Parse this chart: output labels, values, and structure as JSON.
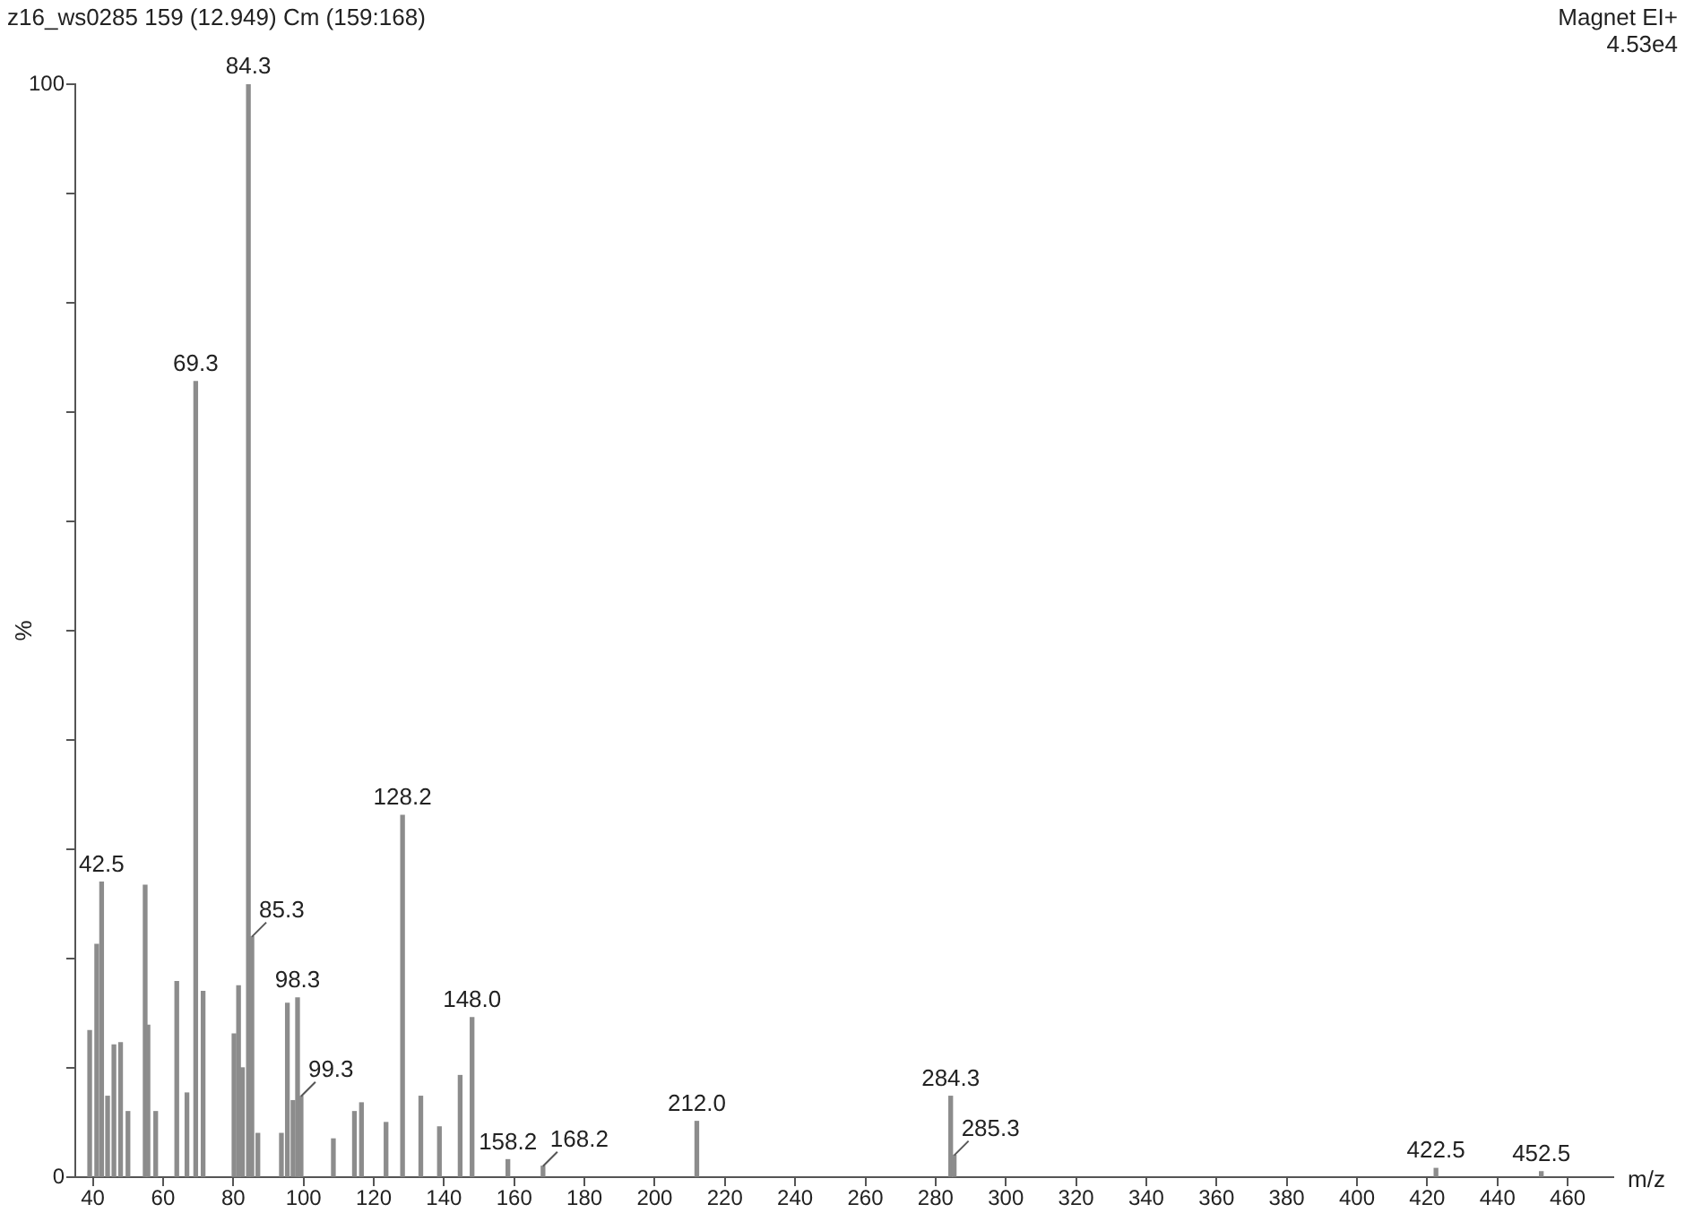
{
  "chart_data": {
    "type": "bar",
    "title": "z16_ws0285 159 (12.949) Cm (159:168)",
    "xlabel": "m/z",
    "ylabel": "%",
    "annotations": [
      "Magnet EI+",
      "4.53e4",
      {
        "text": "42.5",
        "x": 42.5,
        "y": 27.0
      },
      {
        "text": "69.3",
        "x": 69.3,
        "y": 72.8
      },
      {
        "text": "84.3",
        "x": 84.3,
        "y": 100
      },
      {
        "text": "85.3",
        "x": 85.3,
        "y": 22
      },
      {
        "text": "98.3",
        "x": 98.3,
        "y": 16.4
      },
      {
        "text": "99.3",
        "x": 99.3,
        "y": 7.4
      },
      {
        "text": "128.2",
        "x": 128.2,
        "y": 33.1
      },
      {
        "text": "148.0",
        "x": 148.0,
        "y": 14.6
      },
      {
        "text": "158.2",
        "x": 158.2,
        "y": 1.6
      },
      {
        "text": "168.2",
        "x": 168.2,
        "y": 1
      },
      {
        "text": "212.0",
        "x": 212.0,
        "y": 5.1
      },
      {
        "text": "284.3",
        "x": 284.3,
        "y": 7.4
      },
      {
        "text": "285.3",
        "x": 285.3,
        "y": 2
      },
      {
        "text": "422.5",
        "x": 422.5,
        "y": 0.8
      },
      {
        "text": "452.5",
        "x": 452.5,
        "y": 0.5
      }
    ],
    "x": [
      39.1,
      41.1,
      42.5,
      44.2,
      46,
      47.9,
      50,
      54.9,
      55.7,
      57.9,
      63.9,
      66.8,
      69.3,
      71.4,
      80.2,
      81.5,
      82.6,
      84.3,
      85.3,
      87,
      93.7,
      95.4,
      97,
      98.3,
      99.3,
      108.5,
      114.5,
      116.5,
      123.5,
      128.2,
      133.4,
      138.7,
      144.6,
      148.0,
      158.2,
      168.2,
      212.0,
      284.3,
      285.3,
      422.5,
      452.5
    ],
    "values": [
      13.4,
      21.3,
      27.0,
      7.4,
      12.1,
      12.3,
      6,
      26.7,
      13.9,
      6,
      17.9,
      7.7,
      72.8,
      17,
      13.1,
      17.5,
      10,
      100,
      22,
      4,
      4,
      15.9,
      7,
      16.4,
      7.4,
      3.5,
      6,
      6.8,
      5,
      33.1,
      7.4,
      4.6,
      9.3,
      14.6,
      1.6,
      1,
      5.1,
      7.4,
      2,
      0.8,
      0.5
    ],
    "color": "#8c8c8c",
    "xlim": [
      35,
      473
    ],
    "xticks": [
      40,
      60,
      80,
      100,
      120,
      140,
      160,
      180,
      200,
      220,
      240,
      260,
      280,
      300,
      320,
      340,
      360,
      380,
      400,
      420,
      440,
      460
    ],
    "ylim": [
      0,
      100
    ],
    "yticks": [
      0,
      {
        "value": 10,
        "label": null
      },
      {
        "value": 20,
        "label": null
      },
      {
        "value": 30,
        "label": null
      },
      {
        "value": 40,
        "label": null
      },
      {
        "value": 50,
        "label": null
      },
      {
        "value": 60,
        "label": null
      },
      {
        "value": 70,
        "label": null
      },
      {
        "value": 80,
        "label": null
      },
      {
        "value": 90,
        "label": null
      },
      100
    ],
    "grid": false,
    "legend": false
  }
}
